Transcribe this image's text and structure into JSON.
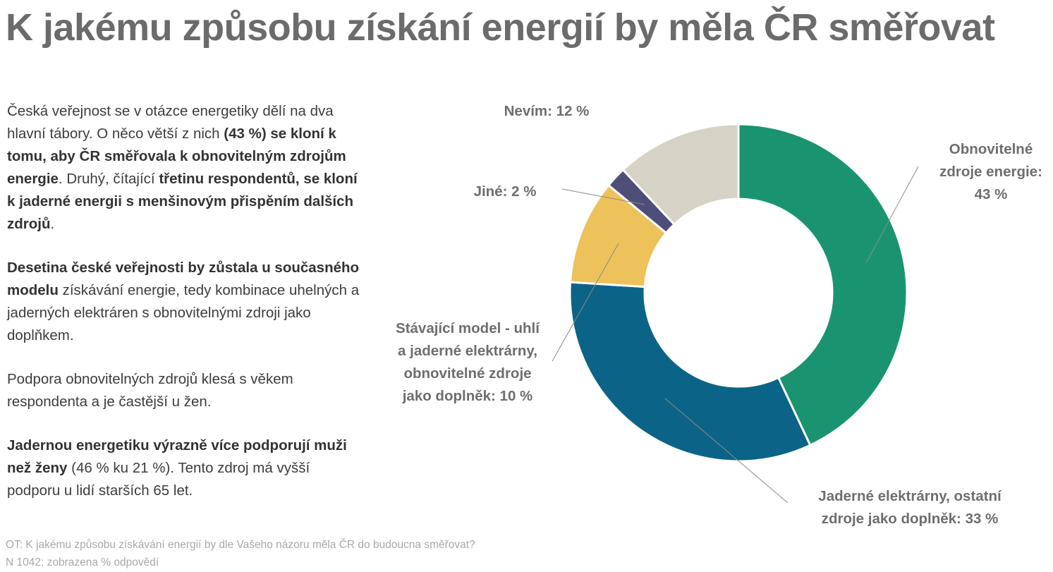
{
  "title": "K jakému způsobu získání energií by měla ČR směřovat",
  "paragraphs": [
    [
      {
        "t": "Česká veřejnost se v otázce energetiky dělí na dva hlavní tábory. O něco větší z nich ",
        "b": false
      },
      {
        "t": "(43 %) se kloní k tomu, aby ČR směřovala k obnovitelným zdrojům energie",
        "b": true
      },
      {
        "t": ". Druhý, čítající ",
        "b": false
      },
      {
        "t": "třetinu respondentů, se kloní k jaderné energii s menšinovým přispěním dalších zdrojů",
        "b": true
      },
      {
        "t": ".",
        "b": false
      }
    ],
    [
      {
        "t": "Desetina české veřejnosti by zůstala u současného modelu",
        "b": true
      },
      {
        "t": " získávání energie, tedy kombinace uhelných a jaderných elektráren s obnovitelnými zdroji jako doplňkem.",
        "b": false
      }
    ],
    [
      {
        "t": "Podpora obnovitelných zdrojů klesá s věkem respondenta a je častější u žen.",
        "b": false
      }
    ],
    [
      {
        "t": "Jadernou energetiku výrazně více podporují muži než ženy",
        "b": true
      },
      {
        "t": " (46 % ku 21 %). Tento zdroj má vyšší podporu u lidí starších 65 let.",
        "b": false
      }
    ]
  ],
  "footnote": {
    "question": "OT: K jakému způsobu získávání energií by dle Vašeho názoru měla ČR do budoucna směřovat?",
    "sample": "N 1042; zobrazena % odpovědí"
  },
  "chart_data": {
    "type": "pie",
    "style": "donut",
    "slices": [
      {
        "label_lines": [
          "Obnovitelné",
          "zdroje energie:",
          "43 %"
        ],
        "value": 43,
        "color": "#1a9470"
      },
      {
        "label_lines": [
          "Jaderné elektrárny, ostatní",
          "zdroje jako doplněk: 33 %"
        ],
        "value": 33,
        "color": "#0b6487"
      },
      {
        "label_lines": [
          "Stávající model - uhlí",
          "a jaderné elektrárny,",
          "obnovitelné zdroje",
          "jako doplněk: 10 %"
        ],
        "value": 10,
        "color": "#edc25a"
      },
      {
        "label_lines": [
          "Jiné: 2 %"
        ],
        "value": 2,
        "color": "#4e4e78"
      },
      {
        "label_lines": [
          "Nevím: 12 %"
        ],
        "value": 12,
        "color": "#d6d2c6"
      }
    ]
  }
}
